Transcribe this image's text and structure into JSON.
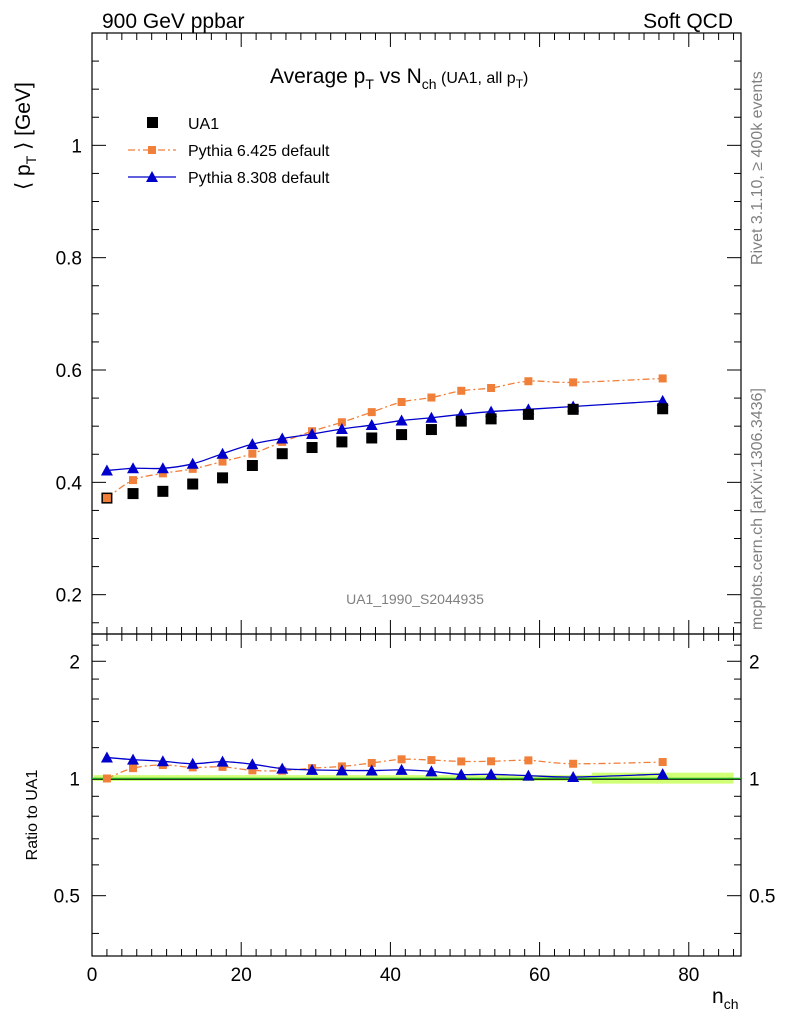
{
  "header": {
    "left": "900 GeV ppbar",
    "right": "Soft QCD"
  },
  "side_text": {
    "rivet": "Rivet 3.1.10, ≥ 400k events",
    "mcplots": "mcplots.cern.ch [arXiv:1306.3436]"
  },
  "chart_data": {
    "type": "scatter",
    "title": {
      "main": "Average p",
      "sub1": "T",
      "mid": " vs N",
      "sub2": "ch",
      "tail": " (UA1, all p",
      "sub3": "T",
      "close": ")"
    },
    "analysis_id": "UA1_1990_S2044935",
    "ylabel": {
      "pre": "⟨ p",
      "sub": "T",
      "post": " ⟩ [GeV]"
    },
    "ratio_ylabel": "Ratio to UA1",
    "xlabel": {
      "main": "n",
      "sub": "ch"
    },
    "xlim": [
      0,
      87
    ],
    "ylim": [
      0.13,
      1.2
    ],
    "ratio_ylim": [
      0.35,
      2.35
    ],
    "x_ticks": [
      "0",
      "20",
      "40",
      "60",
      "80"
    ],
    "y_ticks": [
      "0.2",
      "0.4",
      "0.6",
      "0.8",
      "1"
    ],
    "ratio_ticks": [
      "0.5",
      "1",
      "2"
    ],
    "legend": {
      "placement": "top-left",
      "entries": [
        "UA1",
        "Pythia 6.425 default",
        "Pythia 8.308 default"
      ]
    },
    "colors": {
      "data": "#000000",
      "pythia6": "#f07f3a",
      "pythia8": "#0000cc",
      "band": "#ccff66",
      "unity_line": "#22aa22"
    },
    "series": [
      {
        "name": "UA1",
        "x": [
          2,
          5.5,
          9.5,
          13.5,
          17.5,
          21.5,
          25.5,
          29.5,
          33.5,
          37.5,
          41.5,
          45.5,
          49.5,
          53.5,
          58.5,
          64.5,
          76.5
        ],
        "y": [
          0.372,
          0.38,
          0.384,
          0.397,
          0.408,
          0.43,
          0.451,
          0.462,
          0.472,
          0.479,
          0.485,
          0.494,
          0.509,
          0.513,
          0.521,
          0.53,
          0.531
        ]
      },
      {
        "name": "Pythia 6.425 default",
        "x": [
          2,
          5.5,
          9.5,
          13.5,
          17.5,
          21.5,
          25.5,
          29.5,
          33.5,
          37.5,
          41.5,
          45.5,
          49.5,
          53.5,
          58.5,
          64.5,
          76.5
        ],
        "y": [
          0.372,
          0.404,
          0.416,
          0.424,
          0.437,
          0.451,
          0.472,
          0.491,
          0.507,
          0.525,
          0.543,
          0.551,
          0.563,
          0.568,
          0.58,
          0.578,
          0.585
        ]
      },
      {
        "name": "Pythia 8.308 default",
        "x": [
          2,
          5.5,
          9.5,
          13.5,
          17.5,
          21.5,
          25.5,
          29.5,
          33.5,
          37.5,
          41.5,
          45.5,
          49.5,
          53.5,
          58.5,
          64.5,
          76.5
        ],
        "y": [
          0.421,
          0.425,
          0.425,
          0.433,
          0.451,
          0.468,
          0.478,
          0.486,
          0.495,
          0.502,
          0.51,
          0.515,
          0.521,
          0.526,
          0.53,
          0.535,
          0.545
        ]
      }
    ],
    "ratio_series": [
      {
        "name": "Pythia 6.425 default",
        "y": [
          1.0,
          1.063,
          1.083,
          1.068,
          1.071,
          1.049,
          1.047,
          1.063,
          1.074,
          1.096,
          1.12,
          1.115,
          1.106,
          1.107,
          1.113,
          1.091,
          1.102
        ]
      },
      {
        "name": "Pythia 8.308 default",
        "y": [
          1.132,
          1.118,
          1.107,
          1.091,
          1.105,
          1.088,
          1.06,
          1.052,
          1.049,
          1.048,
          1.052,
          1.043,
          1.024,
          1.025,
          1.017,
          1.009,
          1.026
        ]
      }
    ]
  }
}
